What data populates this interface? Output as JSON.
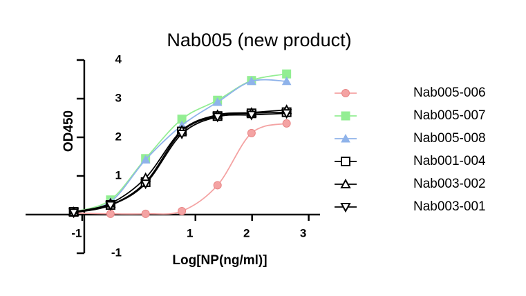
{
  "chart_data": {
    "type": "line",
    "title": "Nab005 (new product)",
    "x_label": "Log[NP(ng/ml)]",
    "y_label": "OD450",
    "x": [
      -1.15,
      -0.5,
      0.12,
      0.76,
      1.39,
      1.99,
      2.61
    ],
    "xlim": [
      -2,
      3.2
    ],
    "xticks": [
      -1,
      1,
      2,
      3
    ],
    "ylim": [
      -1,
      4
    ],
    "yticks": [
      -1,
      1,
      2,
      3,
      4
    ],
    "series": [
      {
        "name": "Nab005-006",
        "color": "#f4a3a3",
        "marker": "circle",
        "values": [
          0.04,
          0.02,
          0.02,
          0.09,
          0.76,
          2.11,
          2.36
        ]
      },
      {
        "name": "Nab005-007",
        "color": "#93ee93",
        "marker": "square",
        "values": [
          0.07,
          0.38,
          1.45,
          2.47,
          2.96,
          3.47,
          3.64
        ]
      },
      {
        "name": "Nab005-008",
        "color": "#8fb3ea",
        "marker": "triangle",
        "values": [
          0.07,
          0.33,
          1.42,
          2.31,
          2.91,
          3.45,
          3.45
        ]
      },
      {
        "name": "Nab001-004",
        "color": "#000000",
        "marker": "open-square",
        "values": [
          0.07,
          0.25,
          0.84,
          2.15,
          2.55,
          2.62,
          2.65
        ]
      },
      {
        "name": "Nab003-002",
        "color": "#000000",
        "marker": "open-triangle",
        "values": [
          0.07,
          0.29,
          0.95,
          2.18,
          2.58,
          2.64,
          2.71
        ]
      },
      {
        "name": "Nab003-001",
        "color": "#000000",
        "marker": "open-down-triangle",
        "values": [
          0.05,
          0.24,
          0.8,
          2.09,
          2.53,
          2.58,
          2.62
        ]
      }
    ]
  }
}
